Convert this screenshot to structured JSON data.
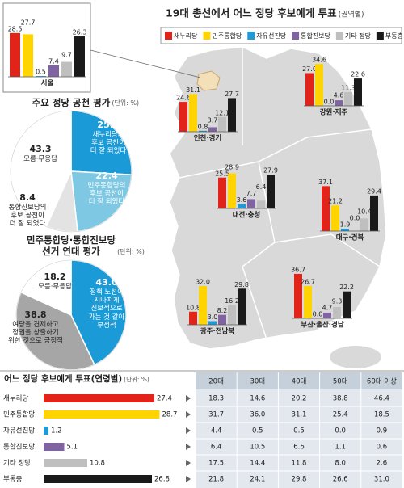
{
  "chart_data": [
    {
      "type": "bar",
      "title": "19대 총선에서 어느 정당 후보에게 투표",
      "subtitle": "(권역별)",
      "categories": [
        "서울",
        "인천·경기",
        "강원·제주",
        "대전·충청",
        "대구·경북",
        "광주·전남북",
        "부산·울산·경남"
      ],
      "series": [
        {
          "name": "새누리당",
          "color": "#e2231a",
          "values": [
            28.5,
            24.6,
            27.0,
            25.5,
            37.1,
            10.8,
            36.7
          ],
          "value_labels": [
            "28.5",
            "24.6",
            "27.0",
            "25.5",
            "37.1",
            "10.8",
            "36.7"
          ]
        },
        {
          "name": "민주통합당",
          "color": "#ffd400",
          "values": [
            27.7,
            31.1,
            34.6,
            28.9,
            21.2,
            32.0,
            26.7
          ],
          "value_labels": [
            "27.7",
            "31.1",
            "34.6",
            "28.9",
            "21.2",
            "32.0",
            "26.7"
          ]
        },
        {
          "name": "자유선진당",
          "color": "#1e9ad6",
          "values": [
            0.5,
            0.8,
            0.0,
            3.6,
            1.9,
            3.0,
            0.0
          ],
          "value_labels": [
            "0.5",
            "0.8",
            "0.0",
            "3.6",
            "1.9",
            "3.0",
            "0.0"
          ]
        },
        {
          "name": "통합진보당",
          "color": "#8064a2",
          "values": [
            7.4,
            3.7,
            4.6,
            7.7,
            0.0,
            8.2,
            4.7
          ],
          "value_labels": [
            "7.4",
            "3.7",
            "4.6",
            "7.7",
            "0.0",
            "8.2",
            "4.7"
          ]
        },
        {
          "name": "기타 정당",
          "color": "#bfbfbf",
          "values": [
            9.7,
            12.1,
            11.3,
            6.4,
            10.4,
            16.2,
            9.3
          ],
          "value_labels": [
            "9.7",
            "12.1",
            "11.3",
            "6.4",
            "10.4",
            "16.2",
            "9.3"
          ]
        },
        {
          "name": "부동층",
          "color": "#1a1a1a",
          "values": [
            26.3,
            27.7,
            22.6,
            27.9,
            29.4,
            29.8,
            22.2
          ],
          "value_labels": [
            "26.3",
            "27.7",
            "22.6",
            "27.9",
            "29.4",
            "29.8",
            "22.2"
          ]
        }
      ]
    },
    {
      "type": "pie",
      "title": "주요 정당 공천 평가",
      "subtitle": "(단위: %)",
      "values": [
        25.9,
        22.4,
        8.4,
        43.3
      ],
      "value_labels": [
        "25.9",
        "22.4",
        "8.4",
        "43.3"
      ],
      "labels": [
        "새누리당의\n후보 공천이\n더 잘 되었다",
        "민주통합당의\n후보 공천이\n더 잘 되었다",
        "통합진보당의\n후보 공천이\n더 잘 되었다",
        "모름·무응답"
      ],
      "colors": [
        "#1a9ad6",
        "#7ec8e3",
        "#e3e3e3",
        "#ffffff"
      ]
    },
    {
      "type": "pie",
      "title": "민주통합당·통합진보당\n선거 연대 평가",
      "subtitle": "(단위: %)",
      "values": [
        43.0,
        38.8,
        18.2
      ],
      "value_labels": [
        "43.0",
        "38.8",
        "18.2"
      ],
      "labels": [
        "정책 노선이\n지나치게\n진보적으로\n가는 것 같아\n부정적",
        "여당을 견제하고\n정권을 창출하기\n위한 것으로 긍정적",
        "모름·무응답"
      ],
      "colors": [
        "#1a9ad6",
        "#a6a6a6",
        "#ffffff"
      ]
    },
    {
      "type": "bar",
      "orientation": "horizontal",
      "title": "어느 정당 후보에게 투표(연령별)",
      "subtitle": "(단위: %)",
      "categories": [
        "새누리당",
        "민주통합당",
        "자유선진당",
        "통합진보당",
        "기타 정당",
        "부동층"
      ],
      "values": [
        27.4,
        28.7,
        1.2,
        5.1,
        10.8,
        26.8
      ],
      "colors": [
        "#e2231a",
        "#ffd400",
        "#1e9ad6",
        "#8064a2",
        "#bfbfbf",
        "#1a1a1a"
      ]
    }
  ],
  "table": {
    "columns": [
      "20대",
      "30대",
      "40대",
      "50대",
      "60대 이상"
    ],
    "rows": [
      [
        "18.3",
        "14.6",
        "20.2",
        "38.8",
        "46.4"
      ],
      [
        "31.7",
        "36.0",
        "31.1",
        "25.4",
        "18.5"
      ],
      [
        "4.4",
        "0.5",
        "0.5",
        "0.0",
        "0.9"
      ],
      [
        "6.4",
        "10.5",
        "6.6",
        "1.1",
        "0.6"
      ],
      [
        "17.5",
        "14.4",
        "11.8",
        "8.0",
        "2.6"
      ],
      [
        "21.8",
        "24.1",
        "29.8",
        "26.6",
        "31.0"
      ]
    ]
  }
}
